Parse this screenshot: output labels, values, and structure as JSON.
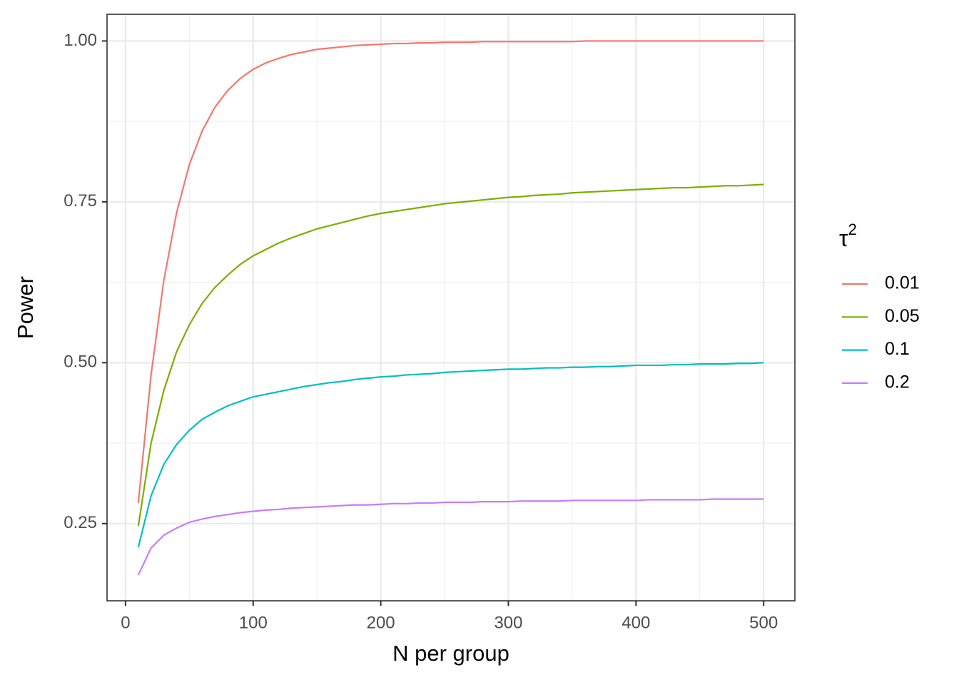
{
  "chart_data": {
    "type": "line",
    "x_label": "N per group",
    "y_label": "Power",
    "legend_title": {
      "base": "τ",
      "superscript": "2"
    },
    "x": [
      10,
      20,
      30,
      40,
      50,
      60,
      70,
      80,
      90,
      100,
      110,
      120,
      130,
      140,
      150,
      160,
      170,
      180,
      190,
      200,
      210,
      220,
      230,
      240,
      250,
      260,
      270,
      280,
      290,
      300,
      310,
      320,
      330,
      340,
      350,
      360,
      370,
      380,
      390,
      400,
      410,
      420,
      430,
      440,
      450,
      460,
      470,
      480,
      490,
      500
    ],
    "series": [
      {
        "name": "0.01",
        "color": "#F8766D",
        "values": [
          0.282,
          0.481,
          0.628,
          0.733,
          0.808,
          0.86,
          0.897,
          0.923,
          0.942,
          0.956,
          0.966,
          0.973,
          0.979,
          0.983,
          0.987,
          0.989,
          0.991,
          0.993,
          0.994,
          0.995,
          0.996,
          0.996,
          0.997,
          0.997,
          0.998,
          0.998,
          0.998,
          0.999,
          0.999,
          0.999,
          0.999,
          0.999,
          0.999,
          0.999,
          0.999,
          1.0,
          1.0,
          1.0,
          1.0,
          1.0,
          1.0,
          1.0,
          1.0,
          1.0,
          1.0,
          1.0,
          1.0,
          1.0,
          1.0,
          1.0
        ]
      },
      {
        "name": "0.05",
        "color": "#7CAE00",
        "values": [
          0.246,
          0.375,
          0.457,
          0.517,
          0.559,
          0.592,
          0.617,
          0.636,
          0.653,
          0.666,
          0.676,
          0.686,
          0.694,
          0.701,
          0.708,
          0.713,
          0.718,
          0.723,
          0.728,
          0.732,
          0.735,
          0.738,
          0.741,
          0.744,
          0.747,
          0.749,
          0.751,
          0.753,
          0.755,
          0.757,
          0.758,
          0.76,
          0.761,
          0.762,
          0.764,
          0.765,
          0.766,
          0.767,
          0.768,
          0.769,
          0.77,
          0.771,
          0.772,
          0.772,
          0.773,
          0.774,
          0.775,
          0.775,
          0.776,
          0.777
        ]
      },
      {
        "name": "0.1",
        "color": "#00BFC4",
        "values": [
          0.213,
          0.293,
          0.342,
          0.373,
          0.395,
          0.412,
          0.423,
          0.433,
          0.44,
          0.447,
          0.451,
          0.455,
          0.459,
          0.463,
          0.466,
          0.469,
          0.471,
          0.474,
          0.476,
          0.478,
          0.479,
          0.481,
          0.482,
          0.483,
          0.485,
          0.486,
          0.487,
          0.488,
          0.489,
          0.49,
          0.49,
          0.491,
          0.492,
          0.492,
          0.493,
          0.493,
          0.494,
          0.494,
          0.495,
          0.496,
          0.496,
          0.496,
          0.497,
          0.497,
          0.498,
          0.498,
          0.498,
          0.499,
          0.499,
          0.5
        ]
      },
      {
        "name": "0.2",
        "color": "#C77CFF",
        "values": [
          0.17,
          0.212,
          0.232,
          0.243,
          0.252,
          0.257,
          0.261,
          0.264,
          0.267,
          0.269,
          0.271,
          0.272,
          0.274,
          0.275,
          0.276,
          0.277,
          0.278,
          0.279,
          0.279,
          0.28,
          0.281,
          0.281,
          0.282,
          0.282,
          0.283,
          0.283,
          0.283,
          0.284,
          0.284,
          0.284,
          0.285,
          0.285,
          0.285,
          0.285,
          0.286,
          0.286,
          0.286,
          0.286,
          0.286,
          0.286,
          0.287,
          0.287,
          0.287,
          0.287,
          0.287,
          0.288,
          0.288,
          0.288,
          0.288,
          0.288
        ]
      }
    ],
    "xlim": [
      -14.5,
      524.5
    ],
    "ylim": [
      0.13,
      1.0415
    ],
    "xticks": [
      0,
      100,
      200,
      300,
      400,
      500
    ],
    "yticks": [
      {
        "value": 0.25,
        "label": "0.25"
      },
      {
        "value": 0.5,
        "label": "0.50"
      },
      {
        "value": 0.75,
        "label": "0.75"
      },
      {
        "value": 1,
        "label": "1.00"
      }
    ],
    "x_minor_ticks": [
      50,
      150,
      250,
      350,
      450
    ],
    "y_minor_ticks": [
      0.375,
      0.625,
      0.875
    ],
    "grid": true,
    "legend_position": "right"
  }
}
